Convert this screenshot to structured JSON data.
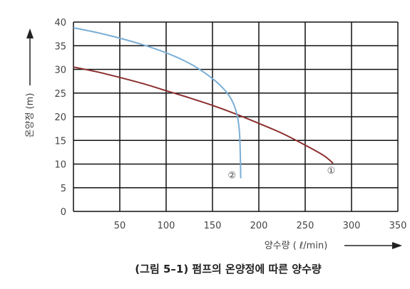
{
  "chart_data": {
    "type": "line",
    "title": "",
    "caption": "(그림 5–1) 펌프의 온양정에 따른 양수량",
    "xlabel": "양수량 ( ℓ/min)",
    "ylabel": "온양정 (m)",
    "xlim": [
      0,
      350
    ],
    "ylim": [
      0,
      40
    ],
    "x_ticks": [
      "50",
      "100",
      "150",
      "200",
      "250",
      "300",
      "350"
    ],
    "y_ticks": [
      "0",
      "5",
      "10",
      "15",
      "20",
      "25",
      "30",
      "35",
      "40"
    ],
    "grid": true,
    "series": [
      {
        "name": "①",
        "color": "#8b2e2e",
        "points": [
          [
            0,
            30.5
          ],
          [
            25,
            29.5
          ],
          [
            50,
            28.3
          ],
          [
            75,
            27.0
          ],
          [
            100,
            25.5
          ],
          [
            125,
            24.0
          ],
          [
            150,
            22.4
          ],
          [
            175,
            20.6
          ],
          [
            200,
            18.6
          ],
          [
            225,
            16.5
          ],
          [
            250,
            14.0
          ],
          [
            270,
            11.8
          ],
          [
            280,
            10.2
          ]
        ]
      },
      {
        "name": "②",
        "color": "#7aaed6",
        "points": [
          [
            0,
            38.8
          ],
          [
            25,
            37.8
          ],
          [
            50,
            36.6
          ],
          [
            75,
            35.2
          ],
          [
            100,
            33.5
          ],
          [
            125,
            31.3
          ],
          [
            145,
            28.8
          ],
          [
            160,
            26.3
          ],
          [
            170,
            23.8
          ],
          [
            176,
            20.8
          ],
          [
            179,
            17.0
          ],
          [
            180,
            12.0
          ],
          [
            180.5,
            7.0
          ]
        ]
      }
    ]
  }
}
